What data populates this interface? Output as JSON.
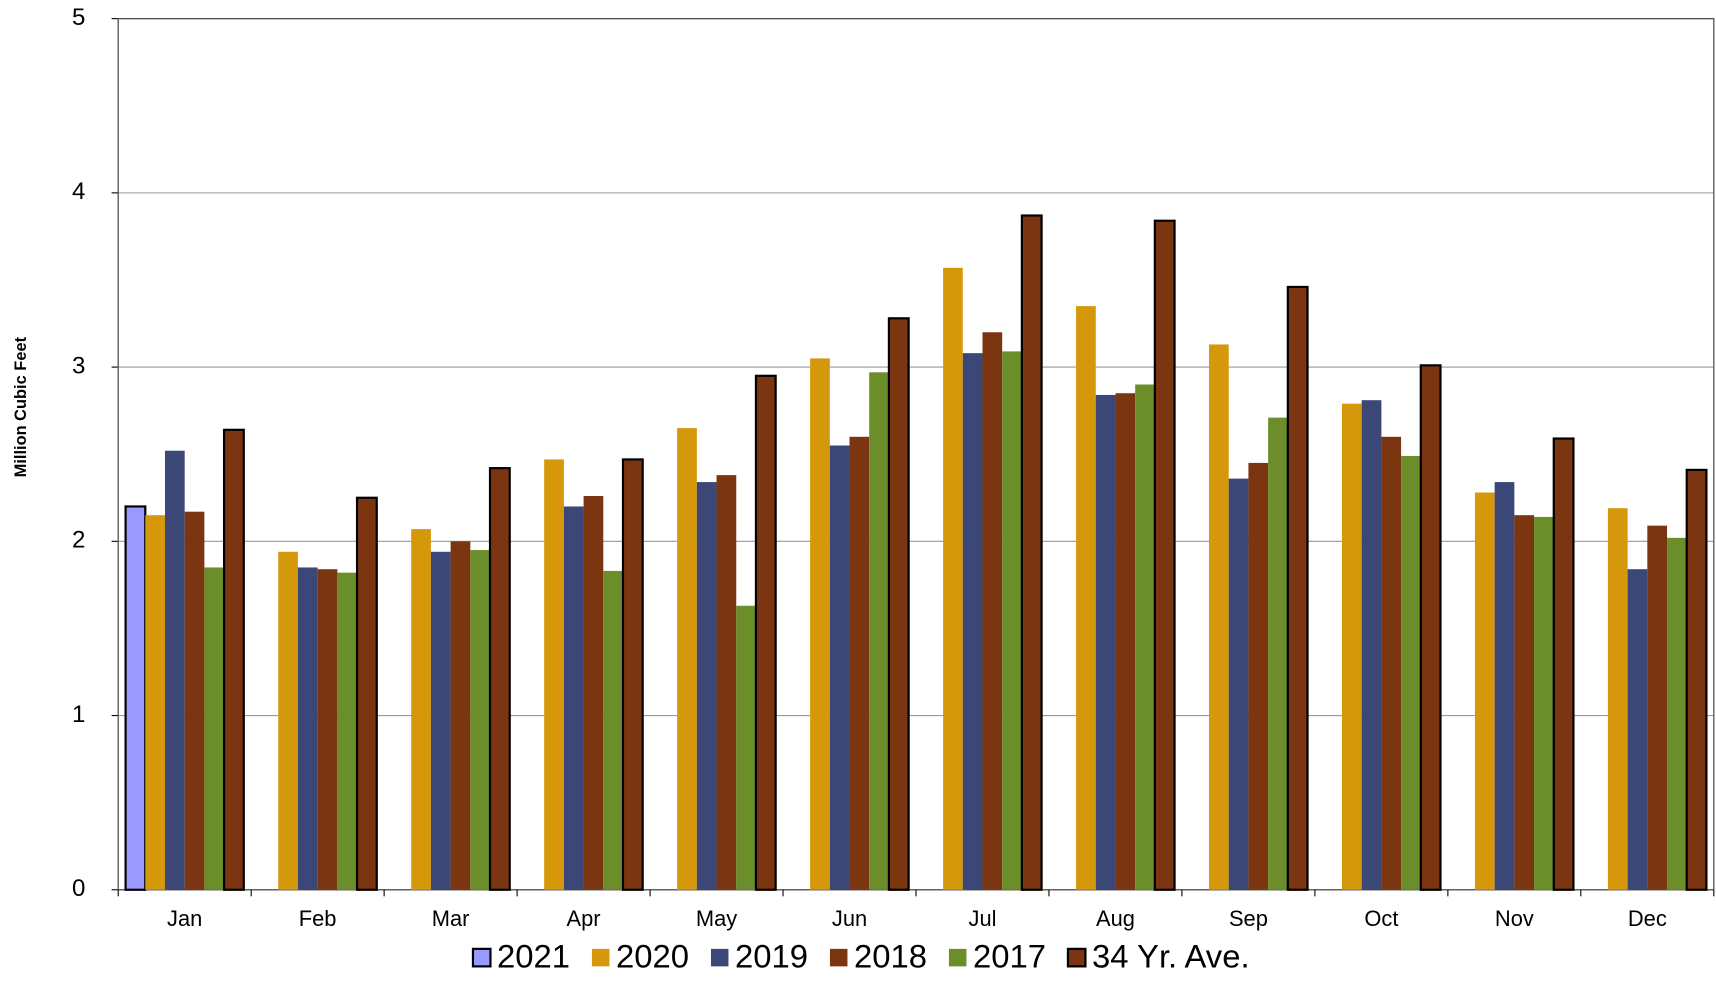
{
  "chart_data": {
    "type": "bar",
    "y_label": "Million Cubic Feet",
    "categories": [
      "Jan",
      "Feb",
      "Mar",
      "Apr",
      "May",
      "Jun",
      "Jul",
      "Aug",
      "Sep",
      "Oct",
      "Nov",
      "Dec"
    ],
    "series": [
      {
        "name": "2021",
        "color": "#9999ff",
        "stroke": "#000000",
        "values": [
          2.2,
          null,
          null,
          null,
          null,
          null,
          null,
          null,
          null,
          null,
          null,
          null
        ]
      },
      {
        "name": "2020",
        "color": "#d4980a",
        "values": [
          2.15,
          1.94,
          2.07,
          2.47,
          2.65,
          3.05,
          3.57,
          3.35,
          3.13,
          2.79,
          2.28,
          2.19
        ]
      },
      {
        "name": "2019",
        "color": "#3b4877",
        "values": [
          2.52,
          1.85,
          1.94,
          2.2,
          2.34,
          2.55,
          3.08,
          2.84,
          2.36,
          2.81,
          2.34,
          1.84
        ]
      },
      {
        "name": "2018",
        "color": "#7b3510",
        "values": [
          2.17,
          1.84,
          2.0,
          2.26,
          2.38,
          2.6,
          3.2,
          2.85,
          2.45,
          2.6,
          2.15,
          2.09
        ]
      },
      {
        "name": "2017",
        "color": "#6b8e2a",
        "values": [
          1.85,
          1.82,
          1.95,
          1.83,
          1.63,
          2.97,
          3.09,
          2.9,
          2.71,
          2.49,
          2.14,
          2.02
        ]
      },
      {
        "name": "34 Yr. Ave.",
        "color": "#7b3510",
        "stroke": "#000000",
        "values": [
          2.64,
          2.25,
          2.42,
          2.47,
          2.95,
          3.28,
          3.87,
          3.84,
          3.46,
          3.01,
          2.59,
          2.41
        ]
      }
    ],
    "ylim": [
      0,
      5
    ],
    "yticks": [
      0,
      1,
      2,
      3,
      4,
      5
    ],
    "grid": true
  }
}
